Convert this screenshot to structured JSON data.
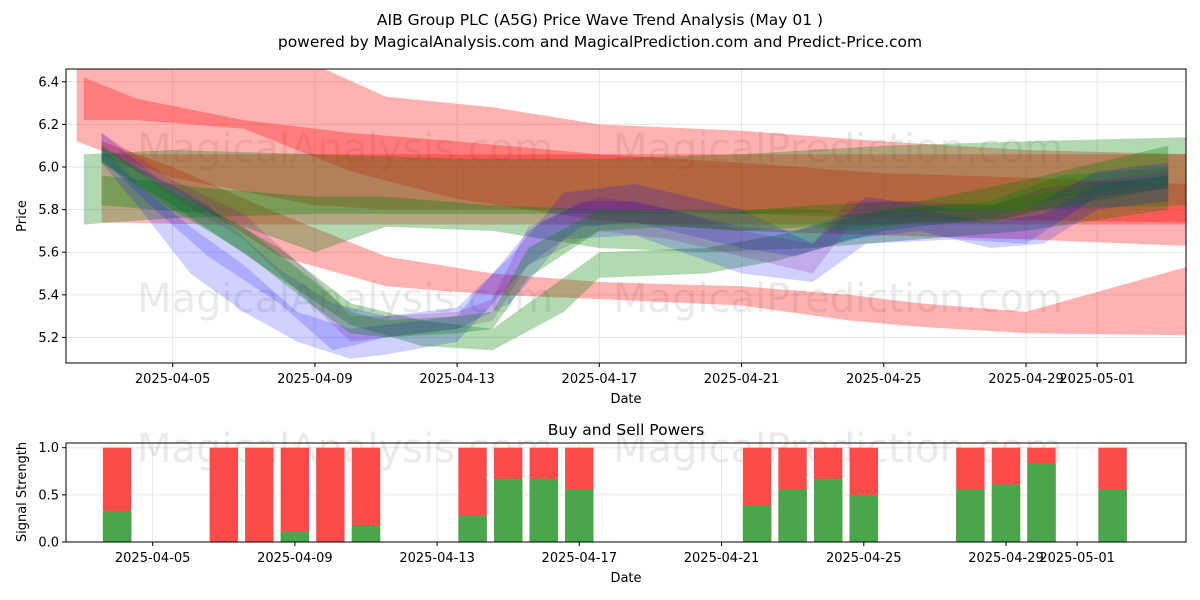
{
  "colors": {
    "red": "#ff0000",
    "green": "#008000",
    "blue": "#0000ff",
    "purple": "#800080",
    "bar_buy": "#4aa64a",
    "bar_sell": "#ff4a4a",
    "grid": "#e6e6e6"
  },
  "title_line1": "AIB Group PLC (A5G) Price Wave Trend Analysis (May 01 )",
  "title_line2": "powered by MagicalAnalysis.com and MagicalPrediction.com and Predict-Price.com",
  "watermarks": [
    "MagicalAnalysis.com",
    "MagicalPrediction.com"
  ],
  "chart_data": [
    {
      "type": "area",
      "title": "",
      "xlabel": "Date",
      "ylabel": "Price",
      "xlim": [
        "2025-04-02",
        "2025-05-03.5"
      ],
      "ylim": [
        5.08,
        6.46
      ],
      "x_ticks": [
        "2025-04-05",
        "2025-04-09",
        "2025-04-13",
        "2025-04-17",
        "2025-04-21",
        "2025-04-25",
        "2025-04-29",
        "2025-05-01"
      ],
      "y_ticks": [
        5.2,
        5.4,
        5.6,
        5.8,
        6.0,
        6.2,
        6.4
      ],
      "grid": true,
      "series": [
        {
          "name": "red-band-upper",
          "color": "red",
          "x": [
            2.3,
            5,
            9,
            11,
            14,
            17,
            21,
            25,
            29,
            33.5
          ],
          "low": [
            6.12,
            5.95,
            5.82,
            5.8,
            5.8,
            5.8,
            5.78,
            5.76,
            5.75,
            5.74
          ],
          "high": [
            6.52,
            6.52,
            6.48,
            6.33,
            6.28,
            6.2,
            6.17,
            6.12,
            6.08,
            6.06
          ]
        },
        {
          "name": "red-band-mid",
          "color": "red",
          "x": [
            2.5,
            4,
            7,
            10,
            13,
            17,
            21,
            25,
            29,
            33.5
          ],
          "low": [
            6.22,
            6.22,
            6.18,
            5.98,
            5.85,
            5.75,
            5.7,
            5.68,
            5.66,
            5.63
          ],
          "high": [
            6.42,
            6.32,
            6.22,
            6.16,
            6.12,
            6.06,
            6.02,
            5.97,
            5.95,
            5.92
          ]
        },
        {
          "name": "red-band-lower",
          "color": "red",
          "x": [
            3,
            5,
            8,
            11,
            14,
            17,
            21,
            24,
            26,
            29,
            33.5
          ],
          "low": [
            6.06,
            5.9,
            5.58,
            5.44,
            5.4,
            5.38,
            5.35,
            5.28,
            5.25,
            5.22,
            5.21
          ],
          "high": [
            6.12,
            6.0,
            5.78,
            5.58,
            5.5,
            5.46,
            5.44,
            5.4,
            5.36,
            5.32,
            5.53
          ]
        },
        {
          "name": "brown-band",
          "color": "red",
          "x": [
            3,
            6,
            10,
            14,
            17,
            21,
            25,
            29,
            33.5
          ],
          "low": [
            5.74,
            5.73,
            5.73,
            5.73,
            5.73,
            5.73,
            5.73,
            5.73,
            5.73
          ],
          "high": [
            6.06,
            6.06,
            6.06,
            6.06,
            6.06,
            6.06,
            6.06,
            6.06,
            6.06
          ],
          "opacity": 0.28
        },
        {
          "name": "green-band-wide",
          "color": "green",
          "x": [
            2.5,
            5,
            9,
            13,
            17,
            21,
            25,
            29,
            33.5
          ],
          "low": [
            5.73,
            5.76,
            5.78,
            5.78,
            5.78,
            5.78,
            5.79,
            5.8,
            5.82
          ],
          "high": [
            6.06,
            6.08,
            6.06,
            6.04,
            6.04,
            6.06,
            6.1,
            6.12,
            6.14
          ]
        },
        {
          "name": "green-band-mid",
          "color": "green",
          "x": [
            3,
            6,
            9,
            11,
            14,
            17,
            20,
            23,
            26,
            29,
            33
          ],
          "low": [
            5.82,
            5.78,
            5.6,
            5.72,
            5.7,
            5.62,
            5.6,
            5.62,
            5.66,
            5.7,
            5.8
          ],
          "high": [
            5.96,
            5.9,
            5.86,
            5.86,
            5.82,
            5.8,
            5.78,
            5.82,
            5.84,
            5.94,
            6.1
          ]
        },
        {
          "name": "green-band-low",
          "color": "green",
          "x": [
            3,
            5,
            8,
            10,
            12,
            14,
            16,
            17,
            20,
            22,
            25,
            28,
            30,
            33
          ],
          "low": [
            6.02,
            5.82,
            5.48,
            5.26,
            5.16,
            5.14,
            5.32,
            5.48,
            5.5,
            5.56,
            5.7,
            5.76,
            5.86,
            5.92
          ],
          "high": [
            6.1,
            5.9,
            5.62,
            5.36,
            5.28,
            5.24,
            5.48,
            5.6,
            5.62,
            5.68,
            5.8,
            5.84,
            5.96,
            6.0
          ]
        },
        {
          "name": "blue-band-1",
          "color": "blue",
          "x": [
            3,
            4.5,
            6,
            8,
            9.5,
            11,
            13,
            14.5,
            16,
            18,
            21,
            23,
            24.5,
            27,
            29,
            31,
            33
          ],
          "low": [
            6.04,
            5.8,
            5.58,
            5.36,
            5.14,
            5.2,
            5.24,
            5.36,
            5.66,
            5.68,
            5.5,
            5.46,
            5.64,
            5.66,
            5.64,
            5.86,
            5.9
          ],
          "high": [
            6.16,
            5.96,
            5.82,
            5.52,
            5.36,
            5.3,
            5.34,
            5.58,
            5.88,
            5.92,
            5.8,
            5.64,
            5.86,
            5.8,
            5.8,
            5.98,
            6.02
          ]
        },
        {
          "name": "blue-band-2",
          "color": "blue",
          "x": [
            3,
            4,
            5.5,
            7,
            8.5,
            10,
            11,
            13,
            15,
            16.5,
            18,
            21,
            22.5,
            24,
            26,
            28,
            29.5,
            31,
            33
          ],
          "low": [
            6.02,
            5.82,
            5.5,
            5.32,
            5.18,
            5.1,
            5.12,
            5.18,
            5.54,
            5.72,
            5.74,
            5.62,
            5.58,
            5.66,
            5.7,
            5.62,
            5.64,
            5.8,
            5.84
          ],
          "high": [
            6.1,
            5.92,
            5.72,
            5.54,
            5.32,
            5.24,
            5.26,
            5.3,
            5.7,
            5.84,
            5.84,
            5.72,
            5.7,
            5.78,
            5.8,
            5.74,
            5.78,
            5.92,
            5.96
          ]
        },
        {
          "name": "purple-band",
          "color": "purple",
          "x": [
            3,
            5,
            7,
            9,
            10,
            11,
            13,
            14,
            15,
            17,
            19,
            21,
            23,
            24,
            26,
            28,
            29.5,
            33
          ],
          "low": [
            6.1,
            5.86,
            5.66,
            5.34,
            5.18,
            5.2,
            5.24,
            5.28,
            5.54,
            5.7,
            5.66,
            5.58,
            5.5,
            5.72,
            5.74,
            5.74,
            5.8,
            5.9
          ],
          "high": [
            6.16,
            5.94,
            5.78,
            5.48,
            5.3,
            5.3,
            5.32,
            5.38,
            5.72,
            5.86,
            5.8,
            5.7,
            5.64,
            5.84,
            5.84,
            5.82,
            5.9,
            5.98
          ]
        },
        {
          "name": "teal-band",
          "color": "green",
          "x": [
            3,
            5,
            7,
            9,
            10,
            11,
            13,
            14,
            15,
            17,
            19,
            21,
            23,
            24,
            26,
            28,
            29.5,
            33
          ],
          "low": [
            6.02,
            5.8,
            5.6,
            5.34,
            5.22,
            5.2,
            5.22,
            5.24,
            5.48,
            5.7,
            5.72,
            5.7,
            5.72,
            5.7,
            5.74,
            5.74,
            5.8,
            5.9
          ],
          "high": [
            6.1,
            5.88,
            5.72,
            5.46,
            5.32,
            5.28,
            5.3,
            5.32,
            5.62,
            5.8,
            5.8,
            5.8,
            5.8,
            5.78,
            5.82,
            5.82,
            5.88,
            5.96
          ]
        }
      ]
    },
    {
      "type": "bar",
      "title": "Buy and Sell Powers",
      "xlabel": "Date",
      "ylabel": "Signal Strength",
      "xlim": [
        "2025-04-02",
        "2025-05-03.5"
      ],
      "ylim": [
        0,
        1.05
      ],
      "x_ticks": [
        "2025-04-05",
        "2025-04-09",
        "2025-04-13",
        "2025-04-17",
        "2025-04-21",
        "2025-04-25",
        "2025-04-29",
        "2025-05-01"
      ],
      "y_ticks": [
        "0.0",
        "0.5",
        "1.0"
      ],
      "grid": true,
      "dates": [
        "2025-04-04",
        "2025-04-07",
        "2025-04-08",
        "2025-04-09",
        "2025-04-10",
        "2025-04-11",
        "2025-04-14",
        "2025-04-15",
        "2025-04-16",
        "2025-04-17",
        "2025-04-22",
        "2025-04-23",
        "2025-04-24",
        "2025-04-25",
        "2025-04-28",
        "2025-04-29",
        "2025-04-30",
        "2025-05-02"
      ],
      "buy": [
        0.33,
        0,
        0,
        0.11,
        0,
        0.17,
        0.28,
        0.67,
        0.67,
        0.56,
        0.39,
        0.56,
        0.67,
        0.5,
        0.56,
        0.61,
        0.83,
        0.56
      ],
      "sell_total": [
        1,
        1,
        1,
        1,
        1,
        1,
        1,
        1,
        1,
        1,
        1,
        1,
        1,
        1,
        1,
        1,
        1,
        1
      ]
    }
  ]
}
